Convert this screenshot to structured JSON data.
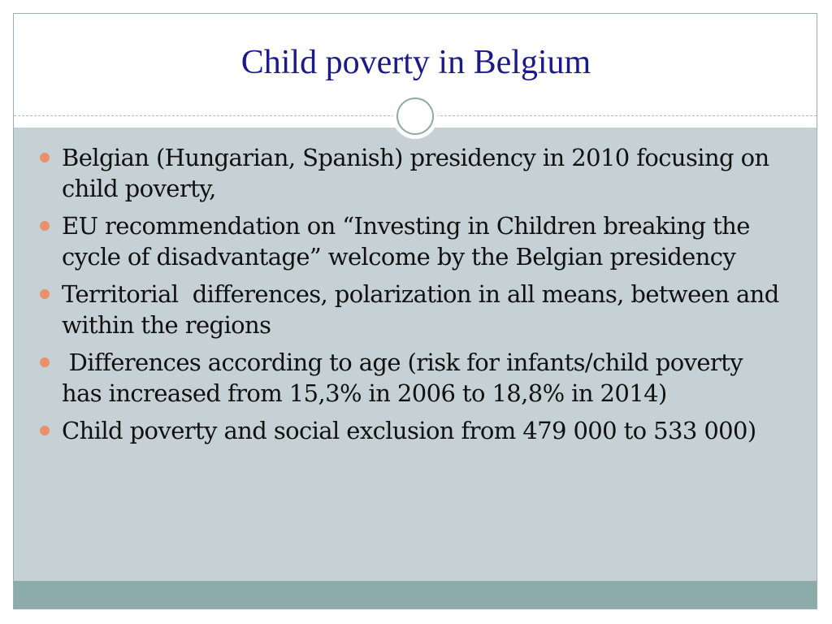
{
  "title": "Child poverty in Belgium",
  "bullets": [
    "Belgian (Hungarian, Spanish) presidency in 2010 focusing on child poverty,",
    "EU recommendation on “Investing in Children breaking the cycle of disadvantage” welcome by the Belgian presidency",
    "Territorial  differences, polarization in all means, between and within the regions",
    " Differences according to age (risk for infants/child poverty has increased from 15,3% in 2006 to 18,8% in 2014)",
    "Child poverty and social exclusion from 479 000 to 533 000)"
  ]
}
